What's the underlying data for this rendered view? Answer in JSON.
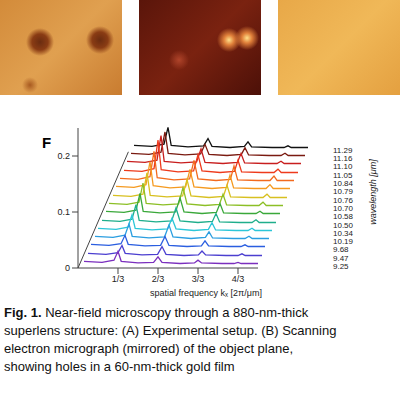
{
  "panel_label": "F",
  "chart_data": {
    "type": "line",
    "x_label": "spatial frequency kₓ [2π/μm]",
    "depth_label": "wavelength [μm]",
    "xlim": [
      0,
      1.5
    ],
    "xticks": [
      {
        "value": 0.3333,
        "label": "1/3"
      },
      {
        "value": 0.6667,
        "label": "2/3"
      },
      {
        "value": 1.0,
        "label": "3/3"
      },
      {
        "value": 1.3333,
        "label": "4/3"
      }
    ],
    "ylim": [
      0,
      0.25
    ],
    "yticks": [
      0,
      0.1,
      0.2
    ],
    "x": [
      0.05,
      0.2,
      0.3,
      0.3333,
      0.36,
      0.5,
      0.63,
      0.6667,
      0.7,
      0.85,
      0.97,
      1.0,
      1.03,
      1.2,
      1.3,
      1.3333,
      1.36,
      1.5
    ],
    "series": [
      {
        "name": "11.29",
        "color": "#111111",
        "values": [
          0.012,
          0.01,
          0.014,
          0.044,
          0.012,
          0.009,
          0.011,
          0.024,
          0.01,
          0.008,
          0.01,
          0.018,
          0.009,
          0.008,
          0.008,
          0.011,
          0.008,
          0.008
        ]
      },
      {
        "name": "11.16",
        "color": "#7a1a10",
        "values": [
          0.012,
          0.01,
          0.014,
          0.05,
          0.012,
          0.009,
          0.011,
          0.028,
          0.01,
          0.008,
          0.01,
          0.022,
          0.009,
          0.008,
          0.008,
          0.012,
          0.008,
          0.008
        ]
      },
      {
        "name": "11.10",
        "color": "#c81e1e",
        "values": [
          0.012,
          0.01,
          0.014,
          0.058,
          0.012,
          0.009,
          0.011,
          0.034,
          0.01,
          0.008,
          0.01,
          0.026,
          0.009,
          0.008,
          0.008,
          0.012,
          0.008,
          0.008
        ]
      },
      {
        "name": "11.05",
        "color": "#ee3a1c",
        "values": [
          0.012,
          0.01,
          0.015,
          0.066,
          0.013,
          0.009,
          0.011,
          0.04,
          0.011,
          0.008,
          0.01,
          0.03,
          0.009,
          0.008,
          0.008,
          0.014,
          0.008,
          0.008
        ]
      },
      {
        "name": "10.84",
        "color": "#f26a1e",
        "values": [
          0.012,
          0.01,
          0.015,
          0.06,
          0.013,
          0.009,
          0.011,
          0.044,
          0.011,
          0.008,
          0.01,
          0.034,
          0.009,
          0.008,
          0.008,
          0.016,
          0.008,
          0.008
        ]
      },
      {
        "name": "10.79",
        "color": "#f59a20",
        "values": [
          0.012,
          0.01,
          0.015,
          0.056,
          0.013,
          0.009,
          0.011,
          0.042,
          0.011,
          0.008,
          0.01,
          0.032,
          0.009,
          0.008,
          0.008,
          0.015,
          0.008,
          0.008
        ]
      },
      {
        "name": "10.76",
        "color": "#d8c020",
        "values": [
          0.012,
          0.01,
          0.014,
          0.052,
          0.012,
          0.009,
          0.011,
          0.04,
          0.011,
          0.008,
          0.01,
          0.03,
          0.009,
          0.008,
          0.008,
          0.014,
          0.008,
          0.008
        ]
      },
      {
        "name": "10.70",
        "color": "#8cbf26",
        "values": [
          0.012,
          0.01,
          0.014,
          0.048,
          0.012,
          0.009,
          0.011,
          0.04,
          0.011,
          0.008,
          0.01,
          0.028,
          0.009,
          0.008,
          0.008,
          0.014,
          0.008,
          0.008
        ]
      },
      {
        "name": "10.58",
        "color": "#3aa83a",
        "values": [
          0.012,
          0.01,
          0.014,
          0.044,
          0.012,
          0.009,
          0.011,
          0.036,
          0.011,
          0.008,
          0.01,
          0.026,
          0.009,
          0.008,
          0.008,
          0.012,
          0.008,
          0.008
        ]
      },
      {
        "name": "10.50",
        "color": "#1fae8c",
        "values": [
          0.012,
          0.01,
          0.014,
          0.04,
          0.012,
          0.009,
          0.011,
          0.034,
          0.011,
          0.008,
          0.01,
          0.024,
          0.009,
          0.008,
          0.008,
          0.013,
          0.008,
          0.008
        ]
      },
      {
        "name": "10.34",
        "color": "#2cc6d8",
        "values": [
          0.012,
          0.01,
          0.014,
          0.036,
          0.012,
          0.009,
          0.011,
          0.03,
          0.011,
          0.008,
          0.01,
          0.022,
          0.009,
          0.008,
          0.008,
          0.012,
          0.008,
          0.008
        ]
      },
      {
        "name": "10.19",
        "color": "#2a9ee0",
        "values": [
          0.012,
          0.01,
          0.014,
          0.034,
          0.012,
          0.009,
          0.011,
          0.032,
          0.011,
          0.008,
          0.01,
          0.02,
          0.009,
          0.008,
          0.008,
          0.012,
          0.008,
          0.008
        ]
      },
      {
        "name": "9.68",
        "color": "#2a5ee0",
        "values": [
          0.012,
          0.01,
          0.013,
          0.028,
          0.012,
          0.009,
          0.01,
          0.026,
          0.01,
          0.008,
          0.009,
          0.018,
          0.009,
          0.008,
          0.008,
          0.011,
          0.008,
          0.008
        ]
      },
      {
        "name": "9.47",
        "color": "#4b3fd0",
        "values": [
          0.012,
          0.01,
          0.013,
          0.026,
          0.012,
          0.009,
          0.01,
          0.024,
          0.01,
          0.008,
          0.009,
          0.016,
          0.009,
          0.008,
          0.008,
          0.011,
          0.008,
          0.008
        ]
      },
      {
        "name": "9.25",
        "color": "#7b2fbe",
        "values": [
          0.012,
          0.01,
          0.014,
          0.03,
          0.012,
          0.009,
          0.01,
          0.02,
          0.01,
          0.008,
          0.009,
          0.014,
          0.009,
          0.008,
          0.008,
          0.01,
          0.008,
          0.008
        ]
      }
    ]
  },
  "caption": {
    "label": "Fig. 1.",
    "lines": [
      "Near-field microscopy through a 880-nm-thick",
      "superlens structure: (A) Experimental setup. (B) Scanning",
      "electron micrograph (mirrored) of the object plane,",
      "showing holes in a 60-nm-thick gold film"
    ]
  }
}
